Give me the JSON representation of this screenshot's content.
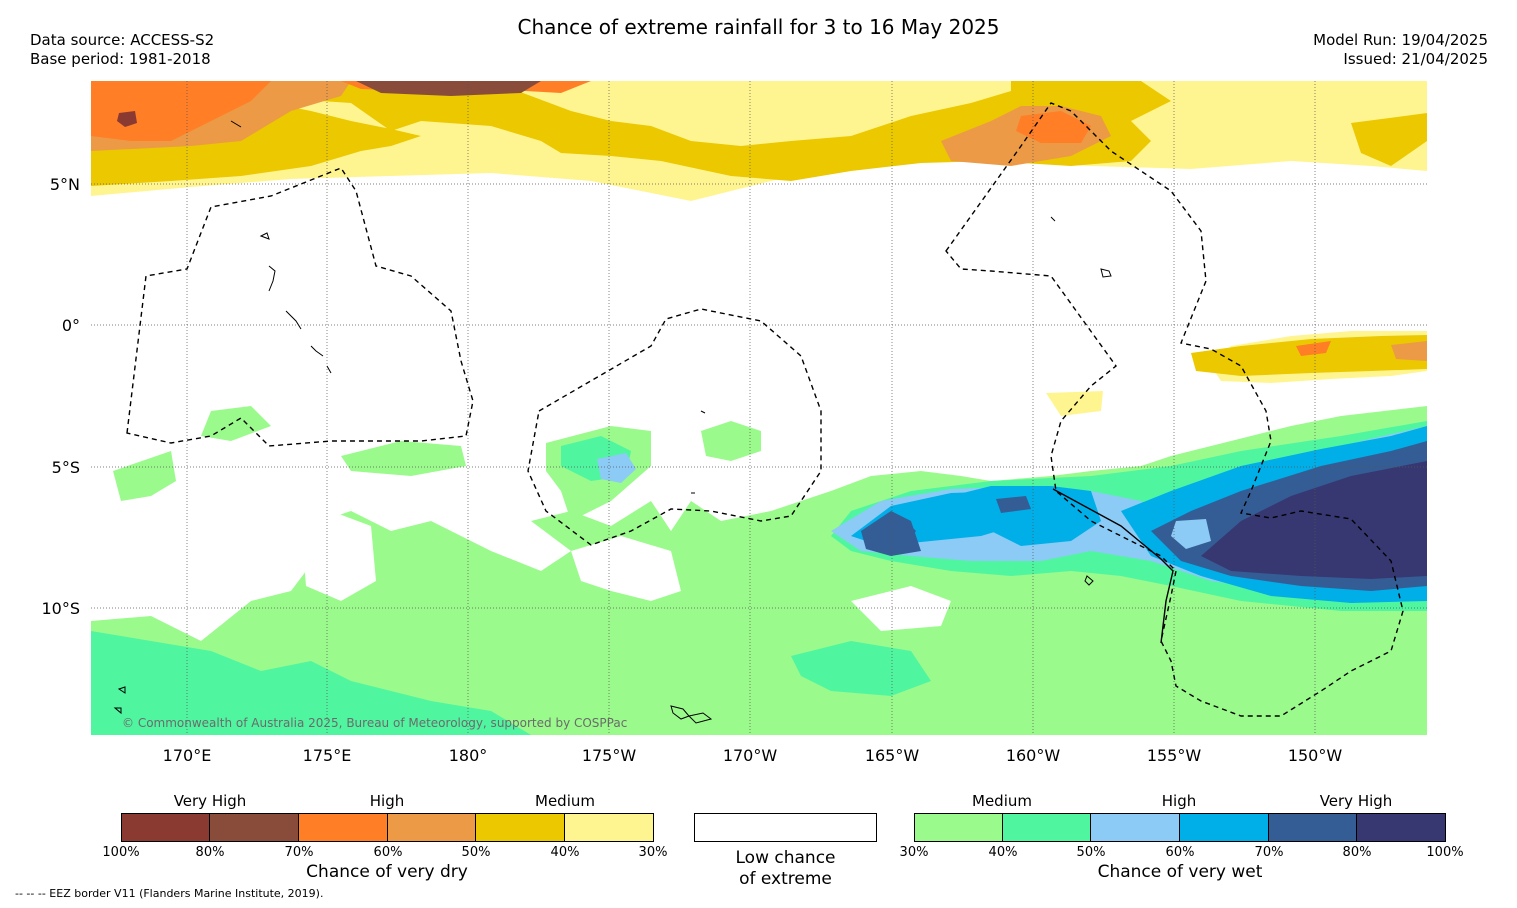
{
  "header": {
    "title": "Chance of extreme rainfall for 3 to 16 May 2025",
    "data_source": "Data source: ACCESS-S2",
    "base_period": "Base period: 1981-2018",
    "model_run": "Model Run: 19/04/2025",
    "issued": "Issued: 21/04/2025"
  },
  "map": {
    "lat_labels": [
      "5°N",
      "0°",
      "5°S",
      "10°S"
    ],
    "lon_labels": [
      "170°E",
      "175°E",
      "180°",
      "175°W",
      "170°W",
      "165°W",
      "160°W",
      "155°W",
      "150°W"
    ],
    "copyright": "© Commonwealth of Australia 2025, Bureau of Meteorology, supported by COSPPac"
  },
  "legend": {
    "dry": {
      "title": "Chance of very dry",
      "categories": [
        "Very High",
        "High",
        "Medium"
      ],
      "ticks": [
        "100%",
        "80%",
        "70%",
        "60%",
        "50%",
        "40%",
        "30%"
      ],
      "colors": [
        "#8b3a32",
        "#8a4c3a",
        "#ff7e26",
        "#ec9a46",
        "#ecc800",
        "#fff590"
      ]
    },
    "low": {
      "line1": "Low chance",
      "line2": "of extreme"
    },
    "wet": {
      "title": "Chance of very wet",
      "categories": [
        "Medium",
        "High",
        "Very High"
      ],
      "ticks": [
        "30%",
        "40%",
        "50%",
        "60%",
        "70%",
        "80%",
        "100%"
      ],
      "colors": [
        "#9bfa8c",
        "#50f5a0",
        "#8ccbf5",
        "#00aee8",
        "#345d96",
        "#373872"
      ]
    }
  },
  "footnote": "--  --  -- EEZ border V11 (Flanders Marine Institute, 2019)."
}
